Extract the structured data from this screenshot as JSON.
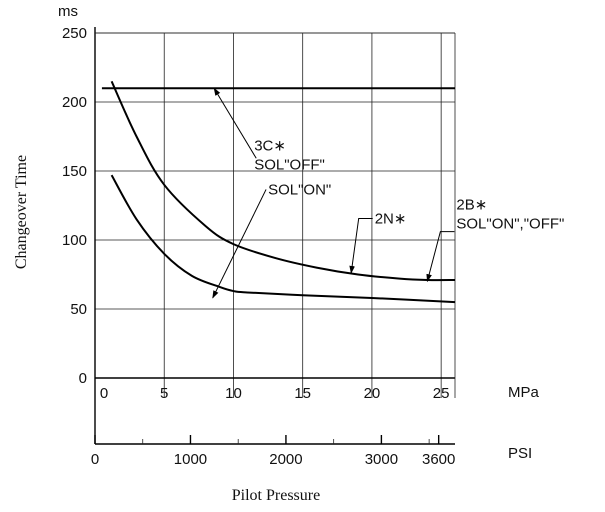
{
  "chart_data": {
    "type": "line",
    "title": "",
    "xlabel": "Pilot Pressure",
    "ylabel": "Changeover Time",
    "y_unit": "ms",
    "x_unit_primary": "MPa",
    "x_unit_secondary": "PSI",
    "ylim": [
      0,
      250
    ],
    "xlim": [
      0,
      26
    ],
    "y_ticks": [
      0,
      50,
      100,
      150,
      200,
      250
    ],
    "x_ticks_mpa": [
      0,
      5,
      10,
      15,
      20,
      25
    ],
    "x_ticks_psi": [
      {
        "label": "0",
        "psi": 0
      },
      {
        "label": "1000",
        "psi": 1000
      },
      {
        "label": "2000",
        "psi": 2000
      },
      {
        "label": "3000",
        "psi": 3000
      },
      {
        "label": "3600",
        "psi": 3600
      }
    ],
    "psi_minor_ticks": [
      500,
      1500,
      2500,
      3500
    ],
    "grid": true,
    "series": [
      {
        "key": "3C",
        "x": [
          0.5,
          26
        ],
        "y": [
          210,
          210
        ]
      },
      {
        "key": "2N",
        "x": [
          1.2,
          3,
          5,
          8,
          10,
          13,
          16,
          19,
          22,
          24,
          26
        ],
        "y": [
          215,
          175,
          140,
          110,
          97,
          87,
          80,
          75,
          72,
          71,
          71
        ]
      },
      {
        "key": "SOL_ON",
        "x": [
          1.2,
          3,
          5,
          7,
          9,
          10,
          11,
          15,
          20,
          26
        ],
        "y": [
          147,
          115,
          90,
          74,
          66,
          63,
          62,
          60,
          58,
          55
        ]
      }
    ],
    "annotations": [
      {
        "key": "3C",
        "lines": [
          "3C∗",
          "SOL\"OFF\""
        ],
        "text_x": 11.5,
        "text_y": 165,
        "arrow_to": [
          8.6,
          210
        ]
      },
      {
        "key": "SOL_ON",
        "lines": [
          "SOL\"ON\""
        ],
        "text_x": 12.5,
        "text_y": 133,
        "arrow_to": [
          8.5,
          58
        ]
      },
      {
        "key": "2N",
        "lines": [
          "2N∗"
        ],
        "text_x": 20.2,
        "text_y": 112,
        "arrow_to": [
          18.5,
          76
        ]
      },
      {
        "key": "2B",
        "lines": [
          "2B∗",
          "SOL\"ON\",\"OFF\""
        ],
        "text_x": 26.1,
        "text_y": 122,
        "arrow_to": [
          24,
          70
        ]
      }
    ]
  }
}
